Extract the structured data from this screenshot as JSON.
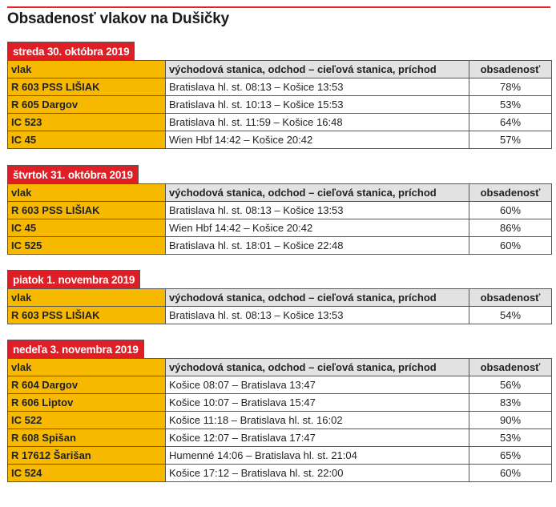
{
  "title": "Obsadenosť vlakov na Dušičky",
  "columns": {
    "train": "vlak",
    "route": "východová stanica, odchod – cieľová stanica, príchod",
    "occupancy": "obsadenosť"
  },
  "colors": {
    "accent_red": "#e01e25",
    "train_yellow": "#f7b900",
    "header_gray": "#e2e2e2"
  },
  "sections": [
    {
      "date": "streda 30. októbra 2019",
      "rows": [
        {
          "train": "R 603 PSS LIŠIAK",
          "route": "Bratislava hl. st. 08:13 – Košice 13:53",
          "occupancy": "78%"
        },
        {
          "train": "R 605 Dargov",
          "route": "Bratislava hl. st. 10:13 – Košice 15:53",
          "occupancy": "53%"
        },
        {
          "train": "IC 523",
          "route": "Bratislava hl. st. 11:59 – Košice 16:48",
          "occupancy": "64%"
        },
        {
          "train": "IC 45",
          "route": "Wien Hbf 14:42 – Košice 20:42",
          "occupancy": "57%"
        }
      ]
    },
    {
      "date": "štvrtok 31. októbra 2019",
      "rows": [
        {
          "train": "R 603 PSS LIŠIAK",
          "route": "Bratislava hl. st. 08:13 – Košice 13:53",
          "occupancy": "60%"
        },
        {
          "train": "IC 45",
          "route": "Wien Hbf 14:42 – Košice 20:42",
          "occupancy": "86%"
        },
        {
          "train": "IC 525",
          "route": "Bratislava hl. st. 18:01 – Košice 22:48",
          "occupancy": "60%"
        }
      ]
    },
    {
      "date": "piatok 1. novembra 2019",
      "rows": [
        {
          "train": "R 603 PSS LIŠIAK",
          "route": "Bratislava hl. st. 08:13 – Košice 13:53",
          "occupancy": "54%"
        }
      ]
    },
    {
      "date": "nedeľa 3. novembra 2019",
      "rows": [
        {
          "train": "R 604 Dargov",
          "route": "Košice 08:07 – Bratislava 13:47",
          "occupancy": "56%"
        },
        {
          "train": "R 606 Liptov",
          "route": "Košice 10:07 – Bratislava 15:47",
          "occupancy": "83%"
        },
        {
          "train": "IC 522",
          "route": "Košice 11:18 – Bratislava hl. st. 16:02",
          "occupancy": "90%"
        },
        {
          "train": "R 608 Spišan",
          "route": "Košice 12:07 – Bratislava 17:47",
          "occupancy": "53%"
        },
        {
          "train": "R 17612 Šarišan",
          "route": "Humenné 14:06 – Bratislava hl. st. 21:04",
          "occupancy": "65%"
        },
        {
          "train": "IC 524",
          "route": "Košice 17:12 – Bratislava hl. st. 22:00",
          "occupancy": "60%"
        }
      ]
    }
  ]
}
